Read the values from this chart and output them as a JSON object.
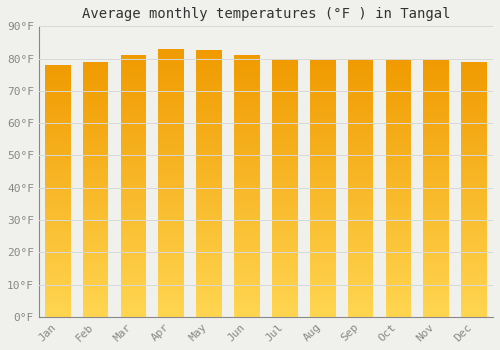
{
  "title": "Average monthly temperatures (°F ) in Tangal",
  "months": [
    "Jan",
    "Feb",
    "Mar",
    "Apr",
    "May",
    "Jun",
    "Jul",
    "Aug",
    "Sep",
    "Oct",
    "Nov",
    "Dec"
  ],
  "values": [
    78,
    79,
    81,
    83,
    82.5,
    81,
    80,
    79.5,
    80,
    80,
    79.5,
    79
  ],
  "ylim": [
    0,
    90
  ],
  "yticks": [
    0,
    10,
    20,
    30,
    40,
    50,
    60,
    70,
    80,
    90
  ],
  "ytick_labels": [
    "0°F",
    "10°F",
    "20°F",
    "30°F",
    "40°F",
    "50°F",
    "60°F",
    "70°F",
    "80°F",
    "90°F"
  ],
  "bar_color_top": "#F5A800",
  "bar_color_bottom": "#FFD060",
  "background_color": "#F0F0EC",
  "grid_color": "#D8D8D8",
  "title_fontsize": 10,
  "tick_fontsize": 8,
  "font_family": "monospace"
}
